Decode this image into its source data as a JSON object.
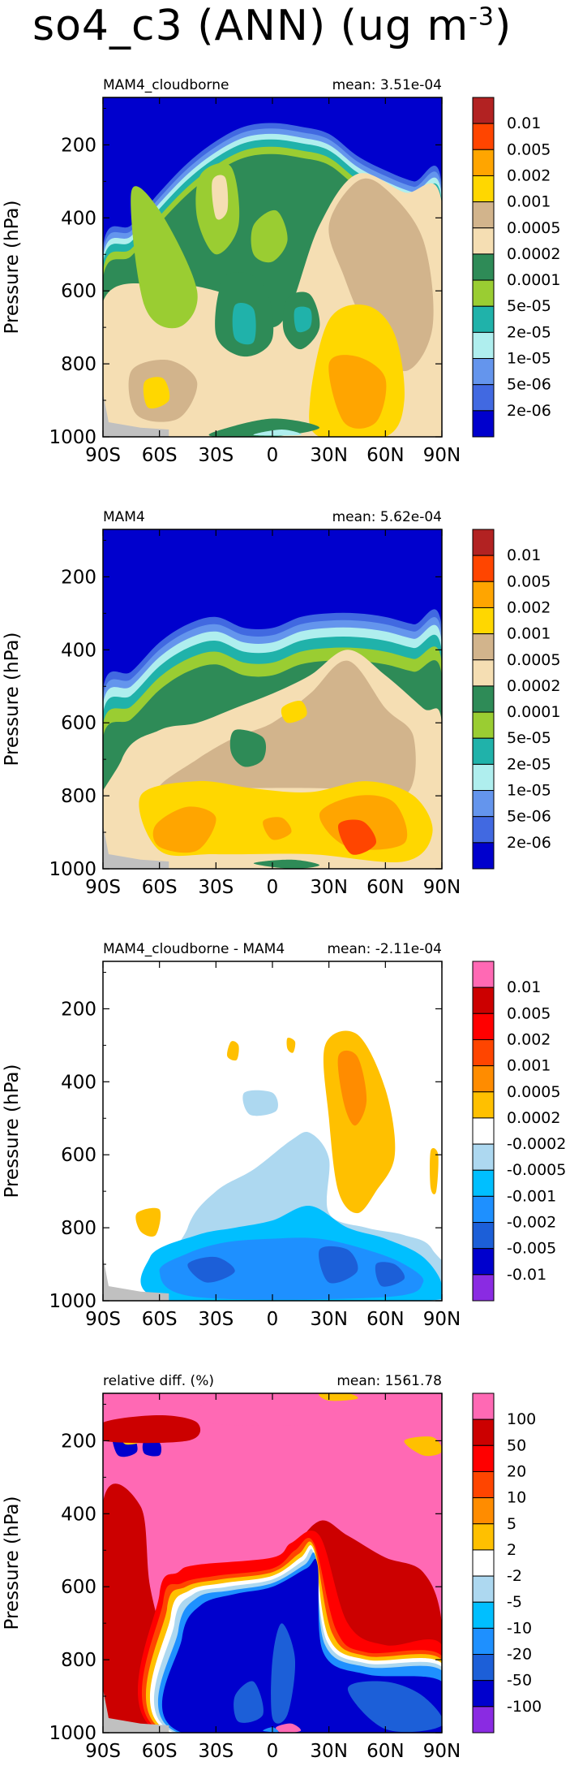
{
  "figure": {
    "title_main": "so4_c3 (ANN) (ug m",
    "title_sup": "-3",
    "title_end": ")"
  },
  "chart_data": [
    {
      "type": "heatmap",
      "title": "MAM4_cloudborne",
      "mean_label": "mean: 3.51e-04",
      "ylabel": "Pressure (hPa)",
      "x_ticks": [
        "90S",
        "60S",
        "30S",
        "0",
        "30N",
        "60N",
        "90N"
      ],
      "x_tick_values": [
        -90,
        -60,
        -30,
        0,
        30,
        60,
        90
      ],
      "y_ticks": [
        "200",
        "400",
        "600",
        "800",
        "1000"
      ],
      "y_tick_values": [
        200,
        400,
        600,
        800,
        1000
      ],
      "xlim": [
        -90,
        90
      ],
      "ylim": [
        1000,
        70
      ],
      "levels": [
        "0.01",
        "0.005",
        "0.002",
        "0.001",
        "0.0005",
        "0.0002",
        "0.0001",
        "5e-05",
        "2e-05",
        "1e-05",
        "5e-06",
        "2e-06"
      ],
      "colors": [
        "#b22222",
        "#ff4500",
        "#ffa500",
        "#ffd700",
        "#d2b48c",
        "#f5deb3",
        "#2e8b57",
        "#9acd32",
        "#20b2aa",
        "#afeeee",
        "#6495ed",
        "#4169e1",
        "#0000cd"
      ]
    },
    {
      "type": "heatmap",
      "title": "MAM4",
      "mean_label": "mean: 5.62e-04",
      "ylabel": "Pressure (hPa)",
      "x_ticks": [
        "90S",
        "60S",
        "30S",
        "0",
        "30N",
        "60N",
        "90N"
      ],
      "x_tick_values": [
        -90,
        -60,
        -30,
        0,
        30,
        60,
        90
      ],
      "y_ticks": [
        "200",
        "400",
        "600",
        "800",
        "1000"
      ],
      "y_tick_values": [
        200,
        400,
        600,
        800,
        1000
      ],
      "xlim": [
        -90,
        90
      ],
      "ylim": [
        1000,
        70
      ],
      "levels": [
        "0.01",
        "0.005",
        "0.002",
        "0.001",
        "0.0005",
        "0.0002",
        "0.0001",
        "5e-05",
        "2e-05",
        "1e-05",
        "5e-06",
        "2e-06"
      ],
      "colors": [
        "#b22222",
        "#ff4500",
        "#ffa500",
        "#ffd700",
        "#d2b48c",
        "#f5deb3",
        "#2e8b57",
        "#9acd32",
        "#20b2aa",
        "#afeeee",
        "#6495ed",
        "#4169e1",
        "#0000cd"
      ]
    },
    {
      "type": "heatmap",
      "title": "MAM4_cloudborne - MAM4",
      "mean_label": "mean: -2.11e-04",
      "ylabel": "Pressure (hPa)",
      "x_ticks": [
        "90S",
        "60S",
        "30S",
        "0",
        "30N",
        "60N",
        "90N"
      ],
      "x_tick_values": [
        -90,
        -60,
        -30,
        0,
        30,
        60,
        90
      ],
      "y_ticks": [
        "200",
        "400",
        "600",
        "800",
        "1000"
      ],
      "y_tick_values": [
        200,
        400,
        600,
        800,
        1000
      ],
      "xlim": [
        -90,
        90
      ],
      "ylim": [
        1000,
        70
      ],
      "levels": [
        "0.01",
        "0.005",
        "0.002",
        "0.001",
        "0.0005",
        "0.0002",
        "-0.0002",
        "-0.0005",
        "-0.001",
        "-0.002",
        "-0.005",
        "-0.01"
      ],
      "colors": [
        "#ff69b4",
        "#cc0000",
        "#ff0000",
        "#ff4500",
        "#ff8c00",
        "#ffc000",
        "#ffffff",
        "#add8f0",
        "#00bfff",
        "#1e90ff",
        "#1c5fd8",
        "#0000cd",
        "#8a2be2"
      ]
    },
    {
      "type": "heatmap",
      "title": "relative diff. (%)",
      "mean_label": "mean: 1561.78",
      "ylabel": "Pressure (hPa)",
      "x_ticks": [
        "90S",
        "60S",
        "30S",
        "0",
        "30N",
        "60N",
        "90N"
      ],
      "x_tick_values": [
        -90,
        -60,
        -30,
        0,
        30,
        60,
        90
      ],
      "y_ticks": [
        "200",
        "400",
        "600",
        "800",
        "1000"
      ],
      "y_tick_values": [
        200,
        400,
        600,
        800,
        1000
      ],
      "xlim": [
        -90,
        90
      ],
      "ylim": [
        1000,
        70
      ],
      "levels": [
        "100",
        "50",
        "20",
        "10",
        "5",
        "2",
        "-2",
        "-5",
        "-10",
        "-20",
        "-50",
        "-100"
      ],
      "colors": [
        "#ff69b4",
        "#cc0000",
        "#ff0000",
        "#ff4500",
        "#ff8c00",
        "#ffc000",
        "#ffffff",
        "#add8f0",
        "#00bfff",
        "#1e90ff",
        "#1c5fd8",
        "#0000cd",
        "#8a2be2"
      ]
    }
  ]
}
